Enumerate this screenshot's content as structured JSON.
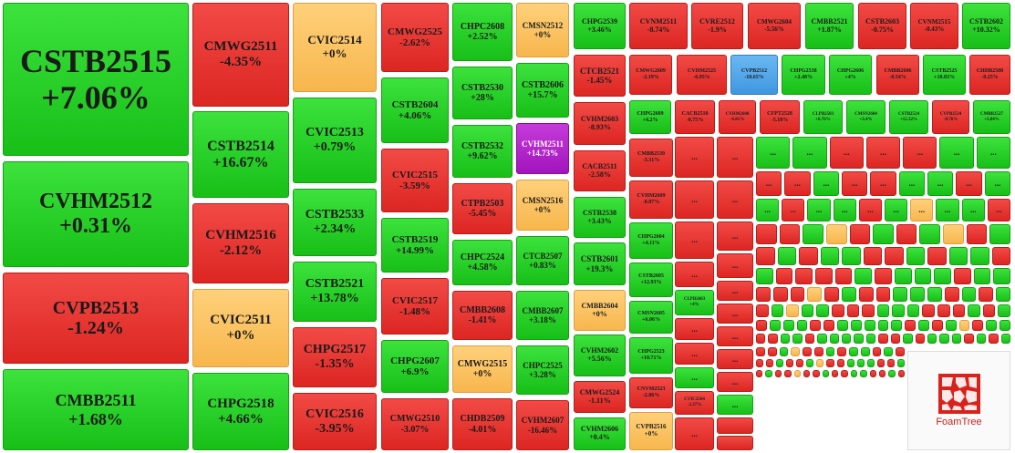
{
  "tiles": [
    {
      "code": "CSTB2515",
      "change": "+7.06%",
      "color": "g"
    },
    {
      "code": "CVHM2512",
      "change": "+0.31%",
      "color": "g"
    },
    {
      "code": "CVPB2513",
      "change": "-1.24%",
      "color": "r"
    },
    {
      "code": "CMBB2511",
      "change": "+1.68%",
      "color": "g"
    },
    {
      "code": "CMWG2511",
      "change": "-4.35%",
      "color": "r"
    },
    {
      "code": "CSTB2514",
      "change": "+16.67%",
      "color": "g"
    },
    {
      "code": "CVHM2516",
      "change": "-2.12%",
      "color": "r"
    },
    {
      "code": "CVIC2511",
      "change": "+0%",
      "color": "y"
    },
    {
      "code": "CHPG2518",
      "change": "+4.66%",
      "color": "g"
    },
    {
      "code": "CVIC2514",
      "change": "+0%",
      "color": "y"
    },
    {
      "code": "CVIC2513",
      "change": "+0.79%",
      "color": "g"
    },
    {
      "code": "CSTB2533",
      "change": "+2.34%",
      "color": "g"
    },
    {
      "code": "CSTB2521",
      "change": "+13.78%",
      "color": "g"
    },
    {
      "code": "CHPG2517",
      "change": "-1.35%",
      "color": "r"
    },
    {
      "code": "CVIC2516",
      "change": "-3.95%",
      "color": "r"
    },
    {
      "code": "CMWG2525",
      "change": "-2.62%",
      "color": "r"
    },
    {
      "code": "CSTB2604",
      "change": "+4.06%",
      "color": "g"
    },
    {
      "code": "CVIC2515",
      "change": "-3.59%",
      "color": "r"
    },
    {
      "code": "CSTB2519",
      "change": "+14.99%",
      "color": "g"
    },
    {
      "code": "CVIC2517",
      "change": "-1.48%",
      "color": "r"
    },
    {
      "code": "CHPG2607",
      "change": "+6.9%",
      "color": "g"
    },
    {
      "code": "CMWG2510",
      "change": "-3.07%",
      "color": "r"
    },
    {
      "code": "CHPC2608",
      "change": "+2.52%",
      "color": "g"
    },
    {
      "code": "CSTB2530",
      "change": "+28%",
      "color": "g"
    },
    {
      "code": "CSTB2532",
      "change": "+9.62%",
      "color": "g"
    },
    {
      "code": "CTPB2503",
      "change": "-5.45%",
      "color": "r"
    },
    {
      "code": "CHPC2524",
      "change": "+4.58%",
      "color": "g"
    },
    {
      "code": "CMBB2608",
      "change": "-1.41%",
      "color": "r"
    },
    {
      "code": "CMWG2515",
      "change": "+0%",
      "color": "y"
    },
    {
      "code": "CHDB2509",
      "change": "-4.01%",
      "color": "r"
    },
    {
      "code": "CMSN2512",
      "change": "+0%",
      "color": "y"
    },
    {
      "code": "CSTB2606",
      "change": "+15.7%",
      "color": "g"
    },
    {
      "code": "CVHM2511",
      "change": "+14.73%",
      "color": "p"
    },
    {
      "code": "CMSN2516",
      "change": "+0%",
      "color": "y"
    },
    {
      "code": "CTCB2507",
      "change": "+0.83%",
      "color": "g"
    },
    {
      "code": "CMBB2607",
      "change": "+3.18%",
      "color": "g"
    },
    {
      "code": "CHPC2525",
      "change": "+3.28%",
      "color": "g"
    },
    {
      "code": "CVHM2607",
      "change": "-16.46%",
      "color": "r"
    },
    {
      "code": "CHPG2539",
      "change": "+3.46%",
      "color": "g"
    },
    {
      "code": "CTCB2521",
      "change": "-1.45%",
      "color": "r"
    },
    {
      "code": "CVHM2603",
      "change": "-8.93%",
      "color": "r"
    },
    {
      "code": "CACB2511",
      "change": "-2.58%",
      "color": "r"
    },
    {
      "code": "CSTB2538",
      "change": "+3.43%",
      "color": "g"
    },
    {
      "code": "CSTB2601",
      "change": "+19.3%",
      "color": "g"
    },
    {
      "code": "CMBB2604",
      "change": "+0%",
      "color": "y"
    },
    {
      "code": "CVHM2602",
      "change": "+5.56%",
      "color": "g"
    },
    {
      "code": "CMWG2524",
      "change": "-1.11%",
      "color": "r"
    },
    {
      "code": "CVHM2606",
      "change": "+0.4%",
      "color": "g"
    },
    {
      "code": "CVNM2511",
      "change": "-8.74%",
      "color": "r"
    },
    {
      "code": "CVRE2512",
      "change": "-1.9%",
      "color": "r"
    },
    {
      "code": "CMWG2604",
      "change": "-5.56%",
      "color": "r"
    },
    {
      "code": "CMBB2521",
      "change": "+1.87%",
      "color": "g"
    },
    {
      "code": "CSTB2603",
      "change": "-0.75%",
      "color": "r"
    },
    {
      "code": "CVNM2515",
      "change": "-0.43%",
      "color": "r"
    },
    {
      "code": "CSTB2602",
      "change": "+10.32%",
      "color": "g"
    },
    {
      "code": "CMWG2609",
      "change": "-2.19%",
      "color": "r"
    },
    {
      "code": "CVHM2525",
      "change": "-6.95%",
      "color": "r"
    },
    {
      "code": "CVPB2512",
      "change": "-18.65%",
      "color": "b"
    },
    {
      "code": "CHPG2538",
      "change": "+2.48%",
      "color": "g"
    },
    {
      "code": "CHPG2606",
      "change": "+4%",
      "color": "g"
    },
    {
      "code": "CMBB2606",
      "change": "-8.54%",
      "color": "r"
    },
    {
      "code": "CSTB2525",
      "change": "+18.83%",
      "color": "g"
    },
    {
      "code": "CHDB2508",
      "change": "-8.25%",
      "color": "r"
    },
    {
      "code": "CHPG2609",
      "change": "+4.2%",
      "color": "g"
    },
    {
      "code": "CACB2510",
      "change": "-8.75%",
      "color": "r"
    },
    {
      "code": "CVHM2608",
      "change": "-6.81%",
      "color": "r"
    },
    {
      "code": "CFPT2528",
      "change": "-5.18%",
      "color": "r"
    },
    {
      "code": "CLPB2503",
      "change": "+6.76%",
      "color": "g"
    },
    {
      "code": "CMSN2604",
      "change": "+3.4%",
      "color": "g"
    },
    {
      "code": "CSTB2524",
      "change": "+12.32%",
      "color": "g"
    },
    {
      "code": "CVPB2524",
      "change": "-8.76%",
      "color": "r"
    },
    {
      "code": "CMBB2527",
      "change": "+3.84%",
      "color": "g"
    },
    {
      "code": "CMBB2539",
      "change": "-3.31%",
      "color": "r"
    },
    {
      "code": "CVHM2609",
      "change": "-8.87%",
      "color": "r"
    },
    {
      "code": "CHPG2604",
      "change": "+4.11%",
      "color": "g"
    },
    {
      "code": "CSTB2605",
      "change": "+12.93%",
      "color": "g"
    },
    {
      "code": "CMSN2605",
      "change": "+6.06%",
      "color": "g"
    },
    {
      "code": "CHPG2523",
      "change": "+10.71%",
      "color": "g"
    },
    {
      "code": "CNVM2523",
      "change": "-2.86%",
      "color": "r"
    },
    {
      "code": "CVPB2516",
      "change": "+0%",
      "color": "y"
    },
    {
      "code": "CLPB2603",
      "change": "+4%",
      "color": "g"
    },
    {
      "code": "CVIC2504",
      "change": "-2.37%",
      "color": "r"
    }
  ],
  "ellipsis": "...",
  "small_rows": [
    "rrrrrrgr",
    "rrrrrrrrrgrr",
    "ggrrrgg",
    "rrgrrggrg",
    "grggrgyggr",
    "rrgyrgrgyrg",
    "rgrggrrgrggr",
    "grrrrgrgggrgg",
    "rrryrgrrgggrgrg",
    "rgyggrrrgggrrrgrg",
    "rgggrrgggggrgrgyrgg",
    "rrggrgggggrrgrgggrgrg",
    "rrgyrrgrggrgr",
    "rrgrrgyrrgggrrg",
    "rgrryrrgrrggrrgr"
  ],
  "branding": "FoamTree"
}
